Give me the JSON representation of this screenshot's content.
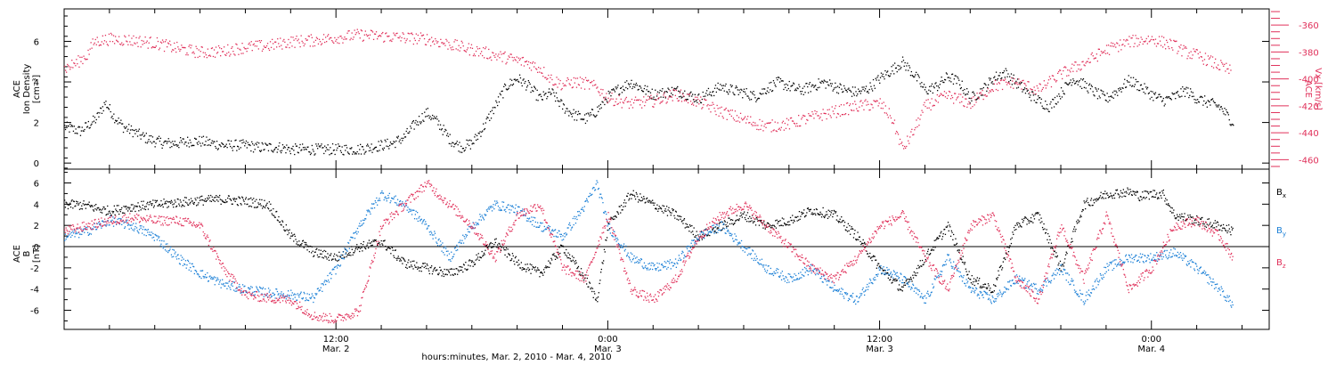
{
  "colors": {
    "black": "#000000",
    "blue": "#1a7fd6",
    "red": "#e0305a"
  },
  "xaxis": {
    "title": "hours:minutes, Mar.  2, 2010 - Mar.  4, 2010",
    "ticks": [
      {
        "t": 12,
        "time": "12:00",
        "date": "Mar. 2"
      },
      {
        "t": 24,
        "time": "0:00",
        "date": "Mar. 3"
      },
      {
        "t": 36,
        "time": "12:00",
        "date": "Mar. 3"
      },
      {
        "t": 48,
        "time": "0:00",
        "date": "Mar. 4"
      }
    ]
  },
  "chart_data": [
    {
      "type": "scatter",
      "title": "",
      "xlabel": "hours:minutes, Mar.  2, 2010 - Mar.  4, 2010",
      "ylabel_lines": [
        "ACE",
        "Ion Density",
        "[cm⁻³]"
      ],
      "ylabel": "ACE Ion Density [cm-3]",
      "ylim": [
        -0.3,
        7.6
      ],
      "yticks": [
        0,
        2,
        4,
        6
      ],
      "y2label_lines": [
        "ACE",
        "Vx [km/s]"
      ],
      "y2label": "ACE Vx [km/s]",
      "y2lim": [
        -467,
        -348
      ],
      "y2ticks": [
        -460,
        -440,
        -420,
        -400,
        -380,
        -360
      ],
      "xlim": [
        0,
        53.2
      ],
      "series": [
        {
          "axis": "left",
          "color": "#000000",
          "x": [
            0,
            0.7,
            1.4,
            1.8,
            2.2,
            2.6,
            3,
            3.5,
            4,
            4.5,
            5,
            5.5,
            6,
            6.5,
            7,
            7.5,
            8,
            8.5,
            9,
            9.5,
            10,
            10.5,
            11,
            11.5,
            12,
            12.5,
            13,
            13.5,
            14,
            14.5,
            15,
            15.5,
            16,
            16.5,
            17,
            17.5,
            18,
            18.5,
            19,
            19.5,
            20,
            20.5,
            21,
            21.5,
            22,
            22.5,
            23,
            23.5,
            24,
            24.5,
            25,
            25.5,
            26,
            26.5,
            27,
            27.5,
            28,
            28.5,
            29,
            29.5,
            30,
            30.5,
            31,
            31.5,
            32,
            32.5,
            33,
            33.5,
            34,
            34.5,
            35,
            35.5,
            36,
            36.5,
            37,
            37.5,
            38,
            38.5,
            39,
            39.5,
            40,
            40.5,
            41,
            41.5,
            42,
            42.5,
            43,
            43.5,
            44,
            44.5,
            45,
            45.5,
            46,
            46.5,
            47,
            47.5,
            48,
            48.5,
            49,
            49.5,
            50,
            50.5,
            51,
            51.6
          ],
          "y": [
            1.8,
            1.6,
            2.2,
            3.0,
            2.3,
            1.8,
            1.6,
            1.3,
            1.1,
            1.0,
            1.0,
            1.1,
            1.1,
            1.0,
            0.9,
            0.9,
            0.9,
            0.8,
            0.8,
            0.8,
            0.7,
            0.7,
            0.7,
            0.7,
            0.7,
            0.7,
            0.7,
            0.8,
            0.9,
            1.0,
            1.3,
            2.0,
            2.5,
            2.0,
            1.2,
            0.8,
            1.0,
            1.8,
            2.8,
            3.8,
            4.2,
            3.8,
            3.2,
            3.5,
            2.8,
            2.4,
            2.2,
            2.6,
            3.3,
            3.7,
            4.0,
            3.7,
            3.4,
            3.5,
            3.6,
            3.4,
            3.2,
            3.5,
            3.8,
            3.6,
            3.5,
            3.3,
            3.7,
            4.0,
            3.8,
            3.6,
            3.8,
            4.0,
            3.8,
            3.6,
            3.5,
            3.7,
            4.2,
            4.6,
            5.0,
            4.4,
            3.6,
            3.8,
            4.3,
            4.0,
            3.2,
            3.6,
            4.2,
            4.5,
            4.0,
            3.5,
            3.1,
            2.8,
            3.5,
            4.2,
            3.9,
            3.5,
            3.2,
            3.6,
            4.1,
            3.8,
            3.4,
            3.1,
            3.3,
            3.6,
            3.2,
            3.0,
            2.8,
            2.0
          ]
        },
        {
          "axis": "right",
          "color": "#e0305a",
          "x": [
            0,
            0.5,
            1,
            1.3,
            2,
            3,
            4,
            5,
            6,
            7,
            8,
            9,
            10,
            11,
            12,
            13,
            14,
            15,
            16,
            17,
            18,
            19,
            20,
            20.5,
            21,
            21.5,
            22,
            22.5,
            23,
            23.5,
            24,
            25,
            26,
            27,
            28,
            29,
            30,
            31,
            32,
            33,
            34,
            35,
            36,
            36.5,
            37,
            37.5,
            38,
            39,
            40,
            41,
            42,
            43,
            44,
            45,
            46,
            47,
            48,
            49,
            49.5,
            50,
            50.5,
            51,
            51.5
          ],
          "y": [
            -392,
            -388,
            -382,
            -372,
            -370,
            -371,
            -373,
            -377,
            -380,
            -379,
            -376,
            -375,
            -372,
            -371,
            -369,
            -367,
            -368,
            -369,
            -370,
            -374,
            -378,
            -382,
            -386,
            -388,
            -392,
            -400,
            -404,
            -402,
            -403,
            -406,
            -414,
            -418,
            -416,
            -411,
            -417,
            -424,
            -430,
            -435,
            -433,
            -428,
            -424,
            -420,
            -418,
            -428,
            -452,
            -438,
            -420,
            -412,
            -418,
            -405,
            -402,
            -408,
            -396,
            -388,
            -378,
            -372,
            -370,
            -375,
            -380,
            -382,
            -386,
            -390,
            -394
          ]
        }
      ]
    },
    {
      "type": "scatter",
      "title": "",
      "xlabel": "hours:minutes, Mar.  2, 2010 - Mar.  4, 2010",
      "ylabel_lines": [
        "ACE",
        "B",
        "[nT]"
      ],
      "ylabel": "ACE B [nT]",
      "ylim": [
        -7.8,
        7.3
      ],
      "yticks": [
        -6,
        -4,
        -2,
        0,
        2,
        4,
        6
      ],
      "zero_line": true,
      "legend": [
        "Bx",
        "By",
        "Bz"
      ],
      "legend_position": "right",
      "xlim": [
        0,
        53.2
      ],
      "series": [
        {
          "name": "Bx",
          "legend_main": "B",
          "legend_sub": "x",
          "color": "#000000",
          "x": [
            0,
            0.5,
            1,
            1.5,
            2,
            3,
            4,
            5,
            6,
            7,
            8,
            9,
            9.5,
            10,
            10.5,
            11,
            12,
            13,
            14,
            15,
            16,
            17,
            18,
            19,
            20,
            21,
            22,
            23,
            23.5,
            24,
            25,
            26,
            27,
            28,
            29,
            30,
            31,
            32,
            33,
            34,
            35,
            36,
            37,
            38,
            39,
            40,
            41,
            42,
            43,
            44,
            45,
            46,
            47,
            47.5,
            48,
            48.5,
            49,
            50,
            51,
            51.6
          ],
          "y": [
            4.0,
            4.0,
            3.9,
            3.6,
            3.4,
            3.8,
            4.0,
            4.2,
            4.4,
            4.5,
            4.3,
            4.0,
            2.5,
            1.0,
            0.3,
            -0.5,
            -1.0,
            0.0,
            0.5,
            -1.5,
            -2.0,
            -2.5,
            -1.5,
            0.5,
            -1.5,
            -2.5,
            0.0,
            -3.0,
            -5.0,
            2.0,
            5.0,
            4.0,
            3.0,
            1.0,
            2.0,
            3.0,
            2.0,
            2.5,
            3.5,
            3.0,
            1.0,
            -2.0,
            -4.0,
            -1.0,
            2.0,
            -3.0,
            -4.0,
            2.0,
            3.0,
            -2.0,
            4.0,
            5.0,
            5.2,
            4.8,
            5.0,
            5.0,
            3.0,
            2.5,
            2.0,
            1.5
          ]
        },
        {
          "name": "By",
          "legend_main": "B",
          "legend_sub": "y",
          "color": "#1a7fd6",
          "x": [
            0,
            1,
            2,
            3,
            4,
            5,
            6,
            7,
            8,
            9,
            10,
            11,
            12,
            13,
            14,
            15,
            16,
            17,
            18,
            19,
            20,
            21,
            22,
            23,
            23.5,
            24,
            25,
            26,
            27,
            28,
            29,
            30,
            31,
            32,
            33,
            34,
            35,
            36,
            37,
            38,
            39,
            40,
            41,
            42,
            43,
            44,
            45,
            46,
            47,
            48,
            49,
            50,
            51,
            51.6
          ],
          "y": [
            1.0,
            1.5,
            2.5,
            2.0,
            1.0,
            -1.0,
            -2.5,
            -3.5,
            -4.0,
            -4.3,
            -4.5,
            -4.8,
            -2.0,
            2.0,
            5.0,
            4.0,
            2.0,
            -1.0,
            2.0,
            4.0,
            3.5,
            2.0,
            1.0,
            4.0,
            6.0,
            2.0,
            -1.0,
            -2.0,
            -1.5,
            1.0,
            2.0,
            0.0,
            -2.0,
            -3.0,
            -2.0,
            -4.0,
            -5.0,
            -2.0,
            -3.0,
            -5.0,
            -1.0,
            -4.0,
            -5.0,
            -3.0,
            -4.0,
            -2.0,
            -5.0,
            -2.0,
            -1.0,
            -1.0,
            -0.5,
            -2.0,
            -4.0,
            -5.5
          ]
        },
        {
          "name": "Bz",
          "legend_main": "B",
          "legend_sub": "z",
          "color": "#e0305a",
          "x": [
            0,
            1,
            2,
            3,
            4,
            5,
            6,
            7,
            8,
            9,
            10,
            11,
            12,
            13,
            14,
            15,
            16,
            17,
            18,
            19,
            20,
            21,
            22,
            23,
            24,
            25,
            26,
            27,
            28,
            29,
            30,
            31,
            32,
            33,
            34,
            35,
            36,
            37,
            38,
            39,
            40,
            41,
            42,
            43,
            44,
            45,
            46,
            47,
            48,
            49,
            50,
            51,
            51.6
          ],
          "y": [
            1.5,
            2.0,
            2.5,
            2.8,
            2.5,
            2.5,
            2.0,
            -2.0,
            -4.5,
            -4.8,
            -5.0,
            -6.5,
            -6.8,
            -6.0,
            2.0,
            4.0,
            6.0,
            4.0,
            2.0,
            -1.0,
            3.0,
            4.0,
            -2.0,
            -3.0,
            3.0,
            -4.0,
            -5.0,
            -3.0,
            1.0,
            3.0,
            4.0,
            2.0,
            0.0,
            -2.0,
            -3.0,
            -1.0,
            2.0,
            3.0,
            -1.0,
            -4.0,
            2.0,
            3.0,
            -3.0,
            -5.0,
            2.0,
            -3.0,
            3.0,
            -4.0,
            -2.0,
            2.0,
            2.5,
            1.0,
            -1.0
          ]
        }
      ]
    }
  ]
}
